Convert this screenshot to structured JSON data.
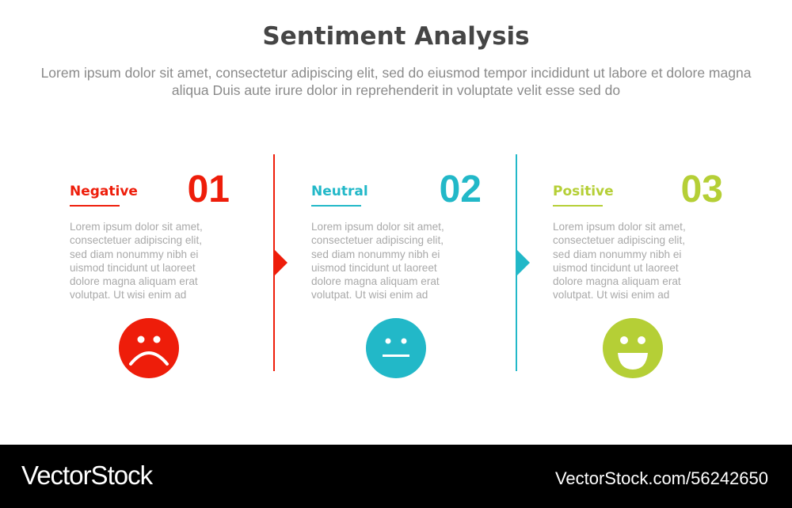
{
  "header": {
    "title": "Sentiment Analysis",
    "subtitle": "Lorem ipsum dolor sit amet, consectetur adipiscing elit, sed do eiusmod tempor incididunt ut labore et dolore magna aliqua Duis aute irure dolor in reprehenderit in voluptate velit esse sed do"
  },
  "colors": {
    "negative": "#ee1d0a",
    "neutral": "#22b8c8",
    "positive": "#b5cf36"
  },
  "items": [
    {
      "label": "Negative",
      "number": "01",
      "icon": "sad-face-icon",
      "body": "Lorem ipsum dolor sit amet,\nconsectetuer adipiscing elit,\nsed diam nonummy nibh ei\nuismod tincidunt ut laoreet\ndolore magna aliquam erat\nvolutpat. Ut wisi enim ad"
    },
    {
      "label": "Neutral",
      "number": "02",
      "icon": "neutral-face-icon",
      "body": "Lorem ipsum dolor sit amet,\nconsectetuer adipiscing elit,\nsed diam nonummy nibh ei\nuismod tincidunt ut laoreet\ndolore magna aliquam erat\nvolutpat. Ut wisi enim ad"
    },
    {
      "label": "Positive",
      "number": "03",
      "icon": "happy-face-icon",
      "body": "Lorem ipsum dolor sit amet,\nconsectetuer adipiscing elit,\nsed diam nonummy nibh ei\nuismod tincidunt ut laoreet\ndolore magna aliquam erat\nvolutpat. Ut wisi enim ad"
    }
  ],
  "footer": {
    "logo": "VectorStock",
    "url": "VectorStock.com/56242650"
  }
}
